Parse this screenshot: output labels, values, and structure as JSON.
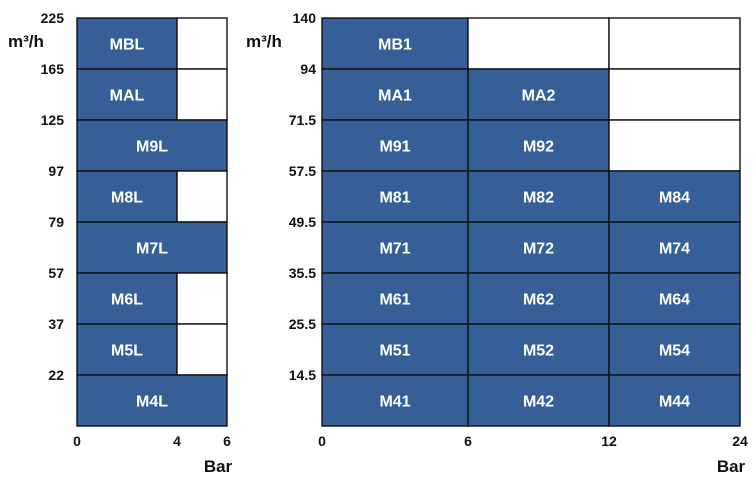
{
  "colors": {
    "cell_fill": "#355f96",
    "empty_fill": "#ffffff",
    "border": "#111111",
    "label": "#ffffff"
  },
  "chart_data": [
    {
      "type": "table",
      "ylabel": "m³/h",
      "xlabel": "Bar",
      "x_ticks": [
        "0",
        "4",
        "6"
      ],
      "x_tick_values": [
        0,
        4,
        6
      ],
      "y_ticks": [
        "225",
        "165",
        "125",
        "97",
        "79",
        "57",
        "37",
        "22"
      ],
      "rows": [
        {
          "y_top": "225",
          "cells": [
            {
              "label": "MBL",
              "x_from": 0,
              "x_to": 4
            },
            {
              "label": "",
              "x_from": 4,
              "x_to": 6
            }
          ]
        },
        {
          "y_top": "165",
          "cells": [
            {
              "label": "MAL",
              "x_from": 0,
              "x_to": 4
            },
            {
              "label": "",
              "x_from": 4,
              "x_to": 6
            }
          ]
        },
        {
          "y_top": "125",
          "cells": [
            {
              "label": "M9L",
              "x_from": 0,
              "x_to": 6
            }
          ]
        },
        {
          "y_top": "97",
          "cells": [
            {
              "label": "M8L",
              "x_from": 0,
              "x_to": 4
            },
            {
              "label": "",
              "x_from": 4,
              "x_to": 6
            }
          ]
        },
        {
          "y_top": "79",
          "cells": [
            {
              "label": "M7L",
              "x_from": 0,
              "x_to": 6
            }
          ]
        },
        {
          "y_top": "57",
          "cells": [
            {
              "label": "M6L",
              "x_from": 0,
              "x_to": 4
            },
            {
              "label": "",
              "x_from": 4,
              "x_to": 6
            }
          ]
        },
        {
          "y_top": "37",
          "cells": [
            {
              "label": "M5L",
              "x_from": 0,
              "x_to": 4
            },
            {
              "label": "",
              "x_from": 4,
              "x_to": 6
            }
          ]
        },
        {
          "y_top": "22",
          "cells": [
            {
              "label": "M4L",
              "x_from": 0,
              "x_to": 6
            }
          ]
        }
      ]
    },
    {
      "type": "table",
      "ylabel": "m³/h",
      "xlabel": "Bar",
      "x_ticks": [
        "0",
        "6",
        "12",
        "24"
      ],
      "x_tick_values": [
        0,
        6,
        12,
        24
      ],
      "y_ticks": [
        "140",
        "94",
        "71.5",
        "57.5",
        "49.5",
        "35.5",
        "25.5",
        "14.5"
      ],
      "rows": [
        {
          "y_top": "140",
          "cells": [
            {
              "label": "MB1",
              "x_from": 0,
              "x_to": 6
            },
            {
              "label": "",
              "x_from": 6,
              "x_to": 12
            },
            {
              "label": "",
              "x_from": 12,
              "x_to": 24
            }
          ]
        },
        {
          "y_top": "94",
          "cells": [
            {
              "label": "MA1",
              "x_from": 0,
              "x_to": 6
            },
            {
              "label": "MA2",
              "x_from": 6,
              "x_to": 12
            },
            {
              "label": "",
              "x_from": 12,
              "x_to": 24
            }
          ]
        },
        {
          "y_top": "71.5",
          "cells": [
            {
              "label": "M91",
              "x_from": 0,
              "x_to": 6
            },
            {
              "label": "M92",
              "x_from": 6,
              "x_to": 12
            },
            {
              "label": "",
              "x_from": 12,
              "x_to": 24
            }
          ]
        },
        {
          "y_top": "57.5",
          "cells": [
            {
              "label": "M81",
              "x_from": 0,
              "x_to": 6
            },
            {
              "label": "M82",
              "x_from": 6,
              "x_to": 12
            },
            {
              "label": "M84",
              "x_from": 12,
              "x_to": 24
            }
          ]
        },
        {
          "y_top": "49.5",
          "cells": [
            {
              "label": "M71",
              "x_from": 0,
              "x_to": 6
            },
            {
              "label": "M72",
              "x_from": 6,
              "x_to": 12
            },
            {
              "label": "M74",
              "x_from": 12,
              "x_to": 24
            }
          ]
        },
        {
          "y_top": "35.5",
          "cells": [
            {
              "label": "M61",
              "x_from": 0,
              "x_to": 6
            },
            {
              "label": "M62",
              "x_from": 6,
              "x_to": 12
            },
            {
              "label": "M64",
              "x_from": 12,
              "x_to": 24
            }
          ]
        },
        {
          "y_top": "25.5",
          "cells": [
            {
              "label": "M51",
              "x_from": 0,
              "x_to": 6
            },
            {
              "label": "M52",
              "x_from": 6,
              "x_to": 12
            },
            {
              "label": "M54",
              "x_from": 12,
              "x_to": 24
            }
          ]
        },
        {
          "y_top": "14.5",
          "cells": [
            {
              "label": "M41",
              "x_from": 0,
              "x_to": 6
            },
            {
              "label": "M42",
              "x_from": 6,
              "x_to": 12
            },
            {
              "label": "M44",
              "x_from": 12,
              "x_to": 24
            }
          ]
        }
      ]
    }
  ]
}
